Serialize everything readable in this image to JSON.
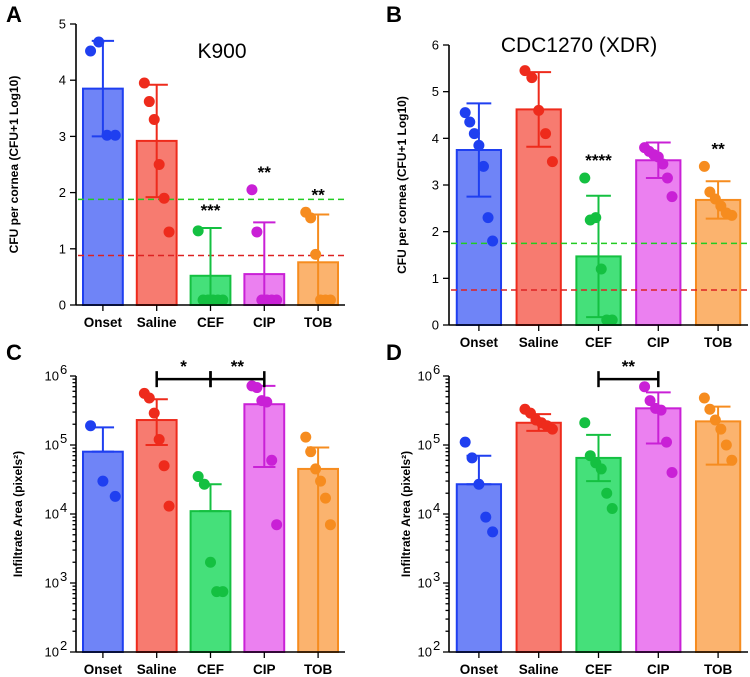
{
  "chart_data": [
    {
      "panel": "A",
      "title": "K900",
      "type": "bar",
      "yscale": "linear",
      "ylabel": "CFU per cornea (CFU+1 Log10)",
      "ylim": [
        0,
        5
      ],
      "yticks": [
        {
          "value": 0,
          "label": "0"
        },
        {
          "value": 1,
          "label": "1"
        },
        {
          "value": 2,
          "label": "2"
        },
        {
          "value": 3,
          "label": "3"
        },
        {
          "value": 4,
          "label": "4"
        },
        {
          "value": 5,
          "label": "5"
        }
      ],
      "categories": [
        "Onset",
        "Saline",
        "CEF",
        "CIP",
        "TOB"
      ],
      "bars": [
        {
          "category": "Onset",
          "mean": 3.85,
          "sd": 0.85,
          "points": [
            4.52,
            4.68,
            3.02,
            3.02
          ]
        },
        {
          "category": "Saline",
          "mean": 2.92,
          "sd": 1.0,
          "points": [
            3.95,
            3.62,
            3.3,
            2.5,
            1.9,
            1.3
          ]
        },
        {
          "category": "CEF",
          "mean": 0.52,
          "sd": 0.85,
          "points": [
            1.32,
            0,
            0,
            0,
            0,
            0
          ]
        },
        {
          "category": "CIP",
          "mean": 0.55,
          "sd": 0.92,
          "points": [
            2.05,
            1.3,
            0,
            0,
            0,
            0
          ]
        },
        {
          "category": "TOB",
          "mean": 0.76,
          "sd": 0.85,
          "points": [
            1.65,
            1.55,
            0.9,
            0,
            0,
            0
          ]
        }
      ],
      "reference_lines": [
        {
          "value": 1.88,
          "color": "#22cc22"
        },
        {
          "value": 0.88,
          "color": "#dd2222"
        }
      ],
      "annotations": [
        {
          "category": "CEF",
          "text": "***"
        },
        {
          "category": "CIP",
          "text": "**"
        },
        {
          "category": "TOB",
          "text": "**"
        }
      ],
      "brackets": []
    },
    {
      "panel": "B",
      "title": "CDC1270 (XDR)",
      "type": "bar",
      "yscale": "linear",
      "ylabel": "CFU per cornea (CFU+1 Log10)",
      "ylim": [
        0,
        6
      ],
      "yticks": [
        {
          "value": 0,
          "label": "0"
        },
        {
          "value": 1,
          "label": "1"
        },
        {
          "value": 2,
          "label": "2"
        },
        {
          "value": 3,
          "label": "3"
        },
        {
          "value": 4,
          "label": "4"
        },
        {
          "value": 5,
          "label": "5"
        },
        {
          "value": 6,
          "label": "6"
        }
      ],
      "categories": [
        "Onset",
        "Saline",
        "CEF",
        "CIP",
        "TOB"
      ],
      "bars": [
        {
          "category": "Onset",
          "mean": 3.75,
          "sd": 1.0,
          "points": [
            4.55,
            4.35,
            4.1,
            3.85,
            3.4,
            2.3,
            1.8
          ]
        },
        {
          "category": "Saline",
          "mean": 4.62,
          "sd": 0.8,
          "points": [
            5.45,
            5.3,
            4.6,
            4.1,
            3.5
          ]
        },
        {
          "category": "CEF",
          "mean": 1.47,
          "sd": 1.3,
          "points": [
            3.15,
            2.25,
            2.3,
            1.2,
            0.05,
            0.05
          ]
        },
        {
          "category": "CIP",
          "mean": 3.53,
          "sd": 0.38,
          "points": [
            3.8,
            3.72,
            3.65,
            3.6,
            3.45,
            3.15,
            2.75
          ]
        },
        {
          "category": "TOB",
          "mean": 2.68,
          "sd": 0.4,
          "points": [
            3.4,
            2.85,
            2.7,
            2.55,
            2.4,
            2.35
          ]
        }
      ],
      "reference_lines": [
        {
          "value": 1.75,
          "color": "#22cc22"
        },
        {
          "value": 0.75,
          "color": "#dd2222"
        }
      ],
      "annotations": [
        {
          "category": "CEF",
          "text": "****"
        },
        {
          "category": "TOB",
          "text": "**"
        }
      ],
      "brackets": []
    },
    {
      "panel": "C",
      "title": "",
      "type": "bar",
      "yscale": "log",
      "ylabel": "Infiltrate Area (pixels²)",
      "ylim": [
        100,
        1000000
      ],
      "yticks": [
        {
          "value": 100,
          "base": "10",
          "exp": "2"
        },
        {
          "value": 1000,
          "base": "10",
          "exp": "3"
        },
        {
          "value": 10000,
          "base": "10",
          "exp": "4"
        },
        {
          "value": 100000,
          "base": "10",
          "exp": "5"
        },
        {
          "value": 1000000,
          "base": "10",
          "exp": "6"
        }
      ],
      "categories": [
        "Onset",
        "Saline",
        "CEF",
        "CIP",
        "TOB"
      ],
      "bars": [
        {
          "category": "Onset",
          "mean": 80000,
          "sd_high": 180000,
          "sd_low": 80000,
          "points": [
            190000,
            30000,
            18000
          ]
        },
        {
          "category": "Saline",
          "mean": 230000,
          "sd_high": 460000,
          "sd_low": 100000,
          "points": [
            560000,
            480000,
            290000,
            120000,
            50000,
            13000
          ]
        },
        {
          "category": "CEF",
          "mean": 11000,
          "sd_high": 27000,
          "sd_low": 11000,
          "points": [
            35000,
            27000,
            2000,
            750,
            750
          ]
        },
        {
          "category": "CIP",
          "mean": 390000,
          "sd_high": 720000,
          "sd_low": 48000,
          "points": [
            720000,
            680000,
            440000,
            420000,
            60000,
            7000
          ]
        },
        {
          "category": "TOB",
          "mean": 45000,
          "sd_high": 92000,
          "sd_low": 100,
          "points": [
            130000,
            80000,
            45000,
            30000,
            17000,
            7000
          ]
        }
      ],
      "reference_lines": [],
      "annotations": [],
      "brackets": [
        {
          "from": "Saline",
          "to": "CEF",
          "text": "*",
          "value": 900000
        },
        {
          "from": "CEF",
          "to": "CIP",
          "text": "**",
          "value": 900000
        }
      ]
    },
    {
      "panel": "D",
      "title": "",
      "type": "bar",
      "yscale": "log",
      "ylabel": "Infiltrate Area (pixels²)",
      "ylim": [
        100,
        1000000
      ],
      "yticks": [
        {
          "value": 100,
          "base": "10",
          "exp": "2"
        },
        {
          "value": 1000,
          "base": "10",
          "exp": "3"
        },
        {
          "value": 10000,
          "base": "10",
          "exp": "4"
        },
        {
          "value": 100000,
          "base": "10",
          "exp": "5"
        },
        {
          "value": 1000000,
          "base": "10",
          "exp": "6"
        }
      ],
      "categories": [
        "Onset",
        "Saline",
        "CEF",
        "CIP",
        "TOB"
      ],
      "bars": [
        {
          "category": "Onset",
          "mean": 27000,
          "sd_high": 70000,
          "sd_low": 27000,
          "points": [
            110000,
            65000,
            27000,
            9000,
            5500
          ]
        },
        {
          "category": "Saline",
          "mean": 210000,
          "sd_high": 280000,
          "sd_low": 160000,
          "points": [
            330000,
            290000,
            230000,
            210000,
            190000,
            170000
          ]
        },
        {
          "category": "CEF",
          "mean": 65000,
          "sd_high": 140000,
          "sd_low": 30000,
          "points": [
            210000,
            70000,
            55000,
            45000,
            20000,
            12000
          ]
        },
        {
          "category": "CIP",
          "mean": 340000,
          "sd_high": 580000,
          "sd_low": 105000,
          "points": [
            700000,
            440000,
            340000,
            320000,
            110000,
            40000
          ]
        },
        {
          "category": "TOB",
          "mean": 220000,
          "sd_high": 360000,
          "sd_low": 52000,
          "points": [
            480000,
            330000,
            230000,
            170000,
            100000,
            60000
          ]
        }
      ],
      "reference_lines": [],
      "annotations": [],
      "brackets": [
        {
          "from": "CEF",
          "to": "CIP",
          "text": "**",
          "value": 900000
        }
      ]
    }
  ],
  "colors": {
    "Onset": {
      "fill": "#6f84f7",
      "edge": "#1f3ff0",
      "dot": "#1f3ff0"
    },
    "Saline": {
      "fill": "#f77b70",
      "edge": "#ee2b1c",
      "dot": "#ee2b1c"
    },
    "CEF": {
      "fill": "#45e07a",
      "edge": "#14c041",
      "dot": "#14c041"
    },
    "CIP": {
      "fill": "#eb80f0",
      "edge": "#c920d6",
      "dot": "#c920d6"
    },
    "TOB": {
      "fill": "#fbb36e",
      "edge": "#f68c1f",
      "dot": "#f68c1f"
    }
  }
}
